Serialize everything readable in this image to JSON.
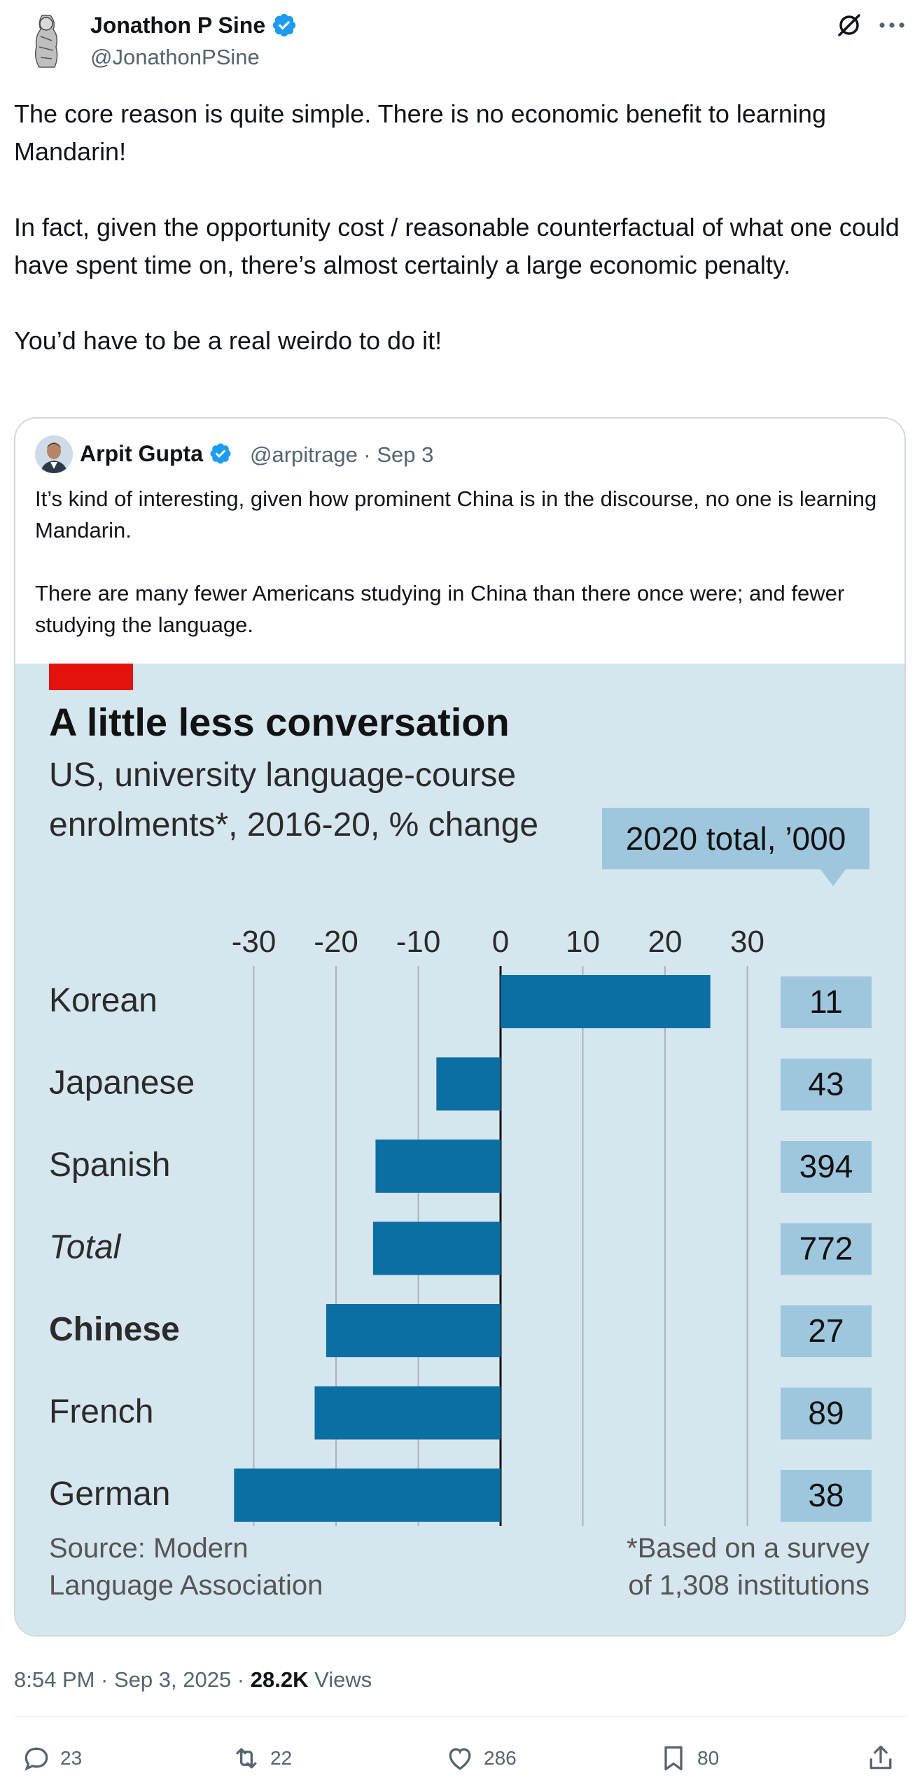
{
  "author": {
    "name": "Jonathon P Sine",
    "handle": "@JonathonPSine",
    "verified_icon": "verified-badge-icon"
  },
  "header_icons": {
    "grok": "grok-icon",
    "more": "more-icon"
  },
  "tweet": {
    "paragraphs": [
      "The core reason is quite simple. There is no economic benefit to learning Mandarin!",
      "In fact, given the opportunity cost / reasonable counterfactual of what one could have spent time on, there’s almost certainly a large economic penalty.",
      "You’d have to be a real weirdo to do it!"
    ]
  },
  "quote": {
    "name": "Arpit Gupta",
    "meta": "@arpitrage · Sep 3",
    "paragraphs": [
      "It’s kind of interesting, given how prominent China is in the discourse, no one is learning Mandarin.",
      "There are many fewer Americans studying in China than there once were; and fewer studying the language."
    ]
  },
  "chart_data": {
    "type": "bar",
    "title": "A little less conversation",
    "subtitle_line1": "US, university language-course",
    "subtitle_line2": "enrolments*, 2016-20, % change",
    "totals_label": "2020 total, ’000",
    "categories": [
      "Korean",
      "Japanese",
      "Spanish",
      "Total",
      "Chinese",
      "French",
      "German"
    ],
    "values": [
      25.5,
      -7.8,
      -15.2,
      -15.5,
      -21.2,
      -22.6,
      -32.4
    ],
    "totals": [
      "11",
      "43",
      "394",
      "772",
      "27",
      "89",
      "38"
    ],
    "xticks": [
      "-30",
      "-20",
      "-10",
      "0",
      "10",
      "20",
      "30"
    ],
    "xlim": [
      -30,
      30
    ],
    "source_line1": "Source: Modern",
    "source_line2": "Language Association",
    "note_line1": "*Based on a survey",
    "note_line2": "of 1,308 institutions",
    "colors": {
      "background": "#d6e6ef",
      "bar": "#0b6fa3",
      "total_box": "#9ec7de",
      "accent": "#e3120b"
    }
  },
  "footer": {
    "time": "8:54 PM · Sep 3, 2025 · ",
    "views_count": "28.2K",
    "views_label": " Views"
  },
  "actions": {
    "reply": "23",
    "retweet": "22",
    "like": "286",
    "bookmark": "80"
  }
}
